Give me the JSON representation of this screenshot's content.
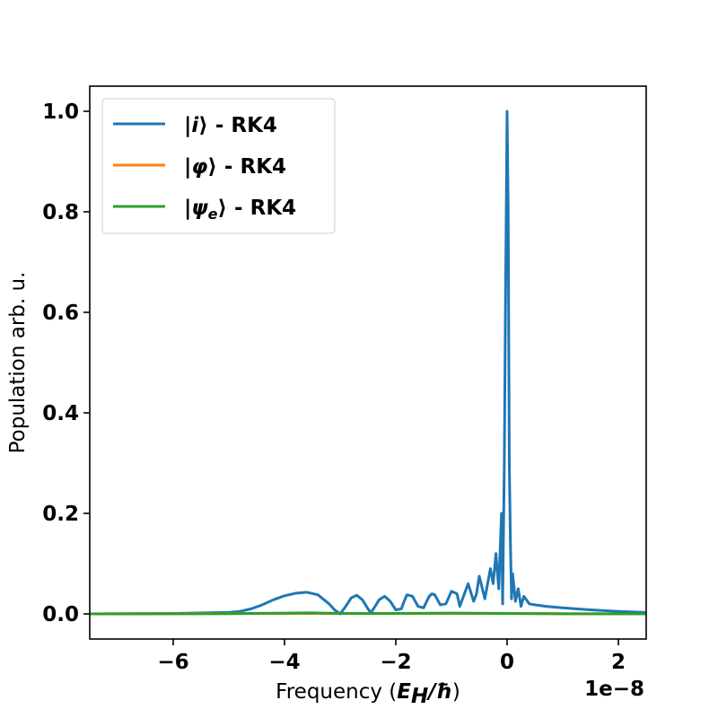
{
  "chart_data": {
    "type": "line",
    "xlabel_prefix": "Frequency (",
    "xlabel_math": "E",
    "xlabel_math_sub": "H",
    "xlabel_math_rest": "/ħ",
    "xlabel_suffix": ")",
    "ylabel": "Population arb. u.",
    "x_offset_label": "1e−8",
    "xlim": [
      -7.5,
      2.5
    ],
    "ylim": [
      -0.05,
      1.05
    ],
    "x_ticks": [
      -6,
      -4,
      -2,
      0,
      2
    ],
    "x_tick_labels": [
      "−6",
      "−4",
      "−2",
      "0",
      "2"
    ],
    "y_ticks": [
      0.0,
      0.2,
      0.4,
      0.6,
      0.8,
      1.0
    ],
    "y_tick_labels": [
      "0.0",
      "0.2",
      "0.4",
      "0.6",
      "0.8",
      "1.0"
    ],
    "grid": false,
    "legend_position": "top-left",
    "series": [
      {
        "name": "|i⟩ - RK4",
        "name_math": "i",
        "name_math_sub": "",
        "name_suffix": "⟩ - RK4",
        "color": "#1f77b4",
        "x": [
          -7.5,
          -6.0,
          -5.0,
          -4.8,
          -4.6,
          -4.4,
          -4.2,
          -4.0,
          -3.8,
          -3.6,
          -3.4,
          -3.2,
          -3.1,
          -3.0,
          -2.9,
          -2.8,
          -2.7,
          -2.6,
          -2.5,
          -2.45,
          -2.4,
          -2.3,
          -2.2,
          -2.1,
          -2.0,
          -1.9,
          -1.85,
          -1.8,
          -1.7,
          -1.6,
          -1.5,
          -1.4,
          -1.35,
          -1.3,
          -1.2,
          -1.1,
          -1.0,
          -0.9,
          -0.85,
          -0.8,
          -0.7,
          -0.6,
          -0.55,
          -0.5,
          -0.4,
          -0.3,
          -0.25,
          -0.2,
          -0.15,
          -0.1,
          -0.08,
          -0.05,
          -0.03,
          0.0,
          0.02,
          0.04,
          0.06,
          0.08,
          0.1,
          0.15,
          0.2,
          0.25,
          0.3,
          0.4,
          0.5,
          0.7,
          1.0,
          1.5,
          2.0,
          2.5
        ],
        "y": [
          0.0,
          0.001,
          0.003,
          0.005,
          0.01,
          0.018,
          0.028,
          0.036,
          0.041,
          0.043,
          0.038,
          0.02,
          0.008,
          0.0,
          0.015,
          0.032,
          0.037,
          0.028,
          0.01,
          0.002,
          0.01,
          0.028,
          0.035,
          0.025,
          0.008,
          0.01,
          0.025,
          0.038,
          0.035,
          0.015,
          0.012,
          0.035,
          0.04,
          0.038,
          0.018,
          0.02,
          0.045,
          0.04,
          0.015,
          0.03,
          0.06,
          0.025,
          0.04,
          0.075,
          0.03,
          0.09,
          0.06,
          0.12,
          0.05,
          0.2,
          0.02,
          0.3,
          0.6,
          1.0,
          0.8,
          0.3,
          0.14,
          0.03,
          0.08,
          0.025,
          0.05,
          0.015,
          0.035,
          0.02,
          0.018,
          0.015,
          0.012,
          0.008,
          0.005,
          0.003
        ]
      },
      {
        "name": "|φ⟩ - RK4",
        "name_math": "φ",
        "name_math_sub": "",
        "name_suffix": "⟩ - RK4",
        "color": "#ff7f0e",
        "x": [
          -7.5,
          -4.0,
          -3.0,
          -2.0,
          -1.0,
          0.0,
          1.0,
          2.5
        ],
        "y": [
          0.0,
          0.001,
          0.001,
          0.001,
          0.001,
          0.001,
          0.0,
          0.0
        ]
      },
      {
        "name": "|ψe⟩ - RK4",
        "name_math": "ψ",
        "name_math_sub": "e",
        "name_suffix": "⟩ - RK4",
        "color": "#2ca02c",
        "x": [
          -7.5,
          -5.0,
          -4.0,
          -3.5,
          -3.0,
          -2.0,
          -1.0,
          0.0,
          1.0,
          2.5
        ],
        "y": [
          0.0,
          0.0005,
          0.0015,
          0.002,
          0.001,
          0.001,
          0.0015,
          0.001,
          0.0005,
          0.0
        ]
      }
    ]
  }
}
